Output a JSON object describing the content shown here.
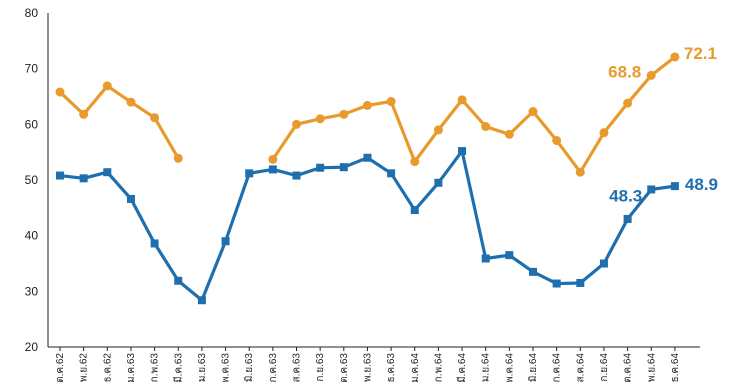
{
  "chart_data": {
    "type": "line",
    "categories": [
      "ต.ค.62",
      "พ.ย.62",
      "ธ.ค.62",
      "ม.ค.63",
      "ก.พ.63",
      "มี.ค.63",
      "เม.ย.63",
      "พ.ค.63",
      "มิ.ย.63",
      "ก.ค.63",
      "ส.ค.63",
      "ก.ย.63",
      "ต.ค.63",
      "พ.ย.63",
      "ธ.ค.63",
      "ม.ค.64",
      "ก.พ.64",
      "มี.ค.64",
      "เม.ย.64",
      "พ.ค.64",
      "มิ.ย.64",
      "ก.ค.64",
      "ส.ค.64",
      "ก.ย.64",
      "ต.ค.64",
      "พ.ย.64",
      "ธ.ค.64"
    ],
    "series": [
      {
        "color": "#e89a2c",
        "marker": "circle",
        "values": [
          65.8,
          61.8,
          66.9,
          64.0,
          61.2,
          53.9,
          null,
          null,
          null,
          53.7,
          60.0,
          61.0,
          61.8,
          63.4,
          64.1,
          53.3,
          59.0,
          64.4,
          59.6,
          58.2,
          62.3,
          57.1,
          51.4,
          58.5,
          63.8,
          68.8,
          72.1
        ]
      },
      {
        "color": "#1f6fae",
        "marker": "square",
        "values": [
          50.8,
          50.3,
          51.4,
          46.6,
          38.6,
          31.9,
          28.4,
          39.0,
          51.2,
          51.9,
          50.8,
          52.2,
          52.3,
          54.0,
          51.2,
          44.6,
          49.5,
          55.2,
          35.9,
          36.5,
          33.5,
          31.4,
          31.5,
          35.0,
          43.0,
          48.3,
          48.9
        ]
      }
    ],
    "ylim": [
      20,
      80
    ],
    "yticks": [
      20,
      30,
      40,
      50,
      60,
      70,
      80
    ],
    "grid": false,
    "annotations": [
      {
        "text": "68.8",
        "series": 0,
        "index": 25,
        "color": "#e89a2c"
      },
      {
        "text": "72.1",
        "series": 0,
        "index": 26,
        "color": "#e89a2c"
      },
      {
        "text": "48.3",
        "series": 1,
        "index": 25,
        "color": "#1f6fae"
      },
      {
        "text": "48.9",
        "series": 1,
        "index": 26,
        "color": "#1f6fae"
      }
    ]
  }
}
